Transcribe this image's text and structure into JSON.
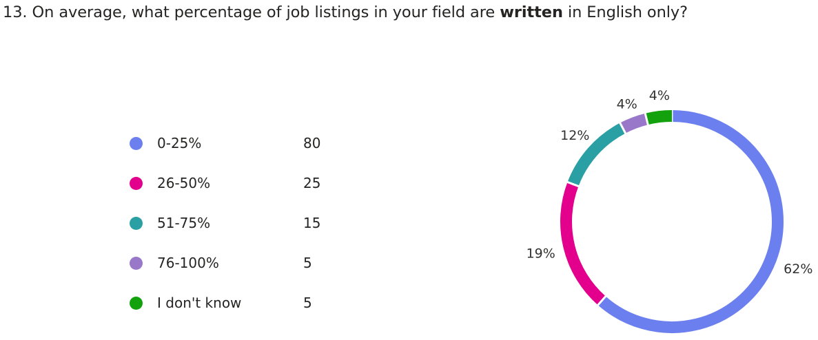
{
  "question": {
    "prefix": "13. On average, what percentage of job listings in your field are ",
    "bold": "written",
    "suffix": " in English only?"
  },
  "chart_data": {
    "type": "pie",
    "donut": true,
    "categories": [
      "0-25%",
      "26-50%",
      "51-75%",
      "76-100%",
      "I don't know"
    ],
    "values": [
      80,
      25,
      15,
      5,
      5
    ],
    "percent_labels": [
      "62%",
      "19%",
      "12%",
      "4%",
      "4%"
    ],
    "colors": [
      "#6b80ee",
      "#e3008c",
      "#2aa0a4",
      "#9a78c9",
      "#13a10e"
    ],
    "legend_position": "left"
  }
}
